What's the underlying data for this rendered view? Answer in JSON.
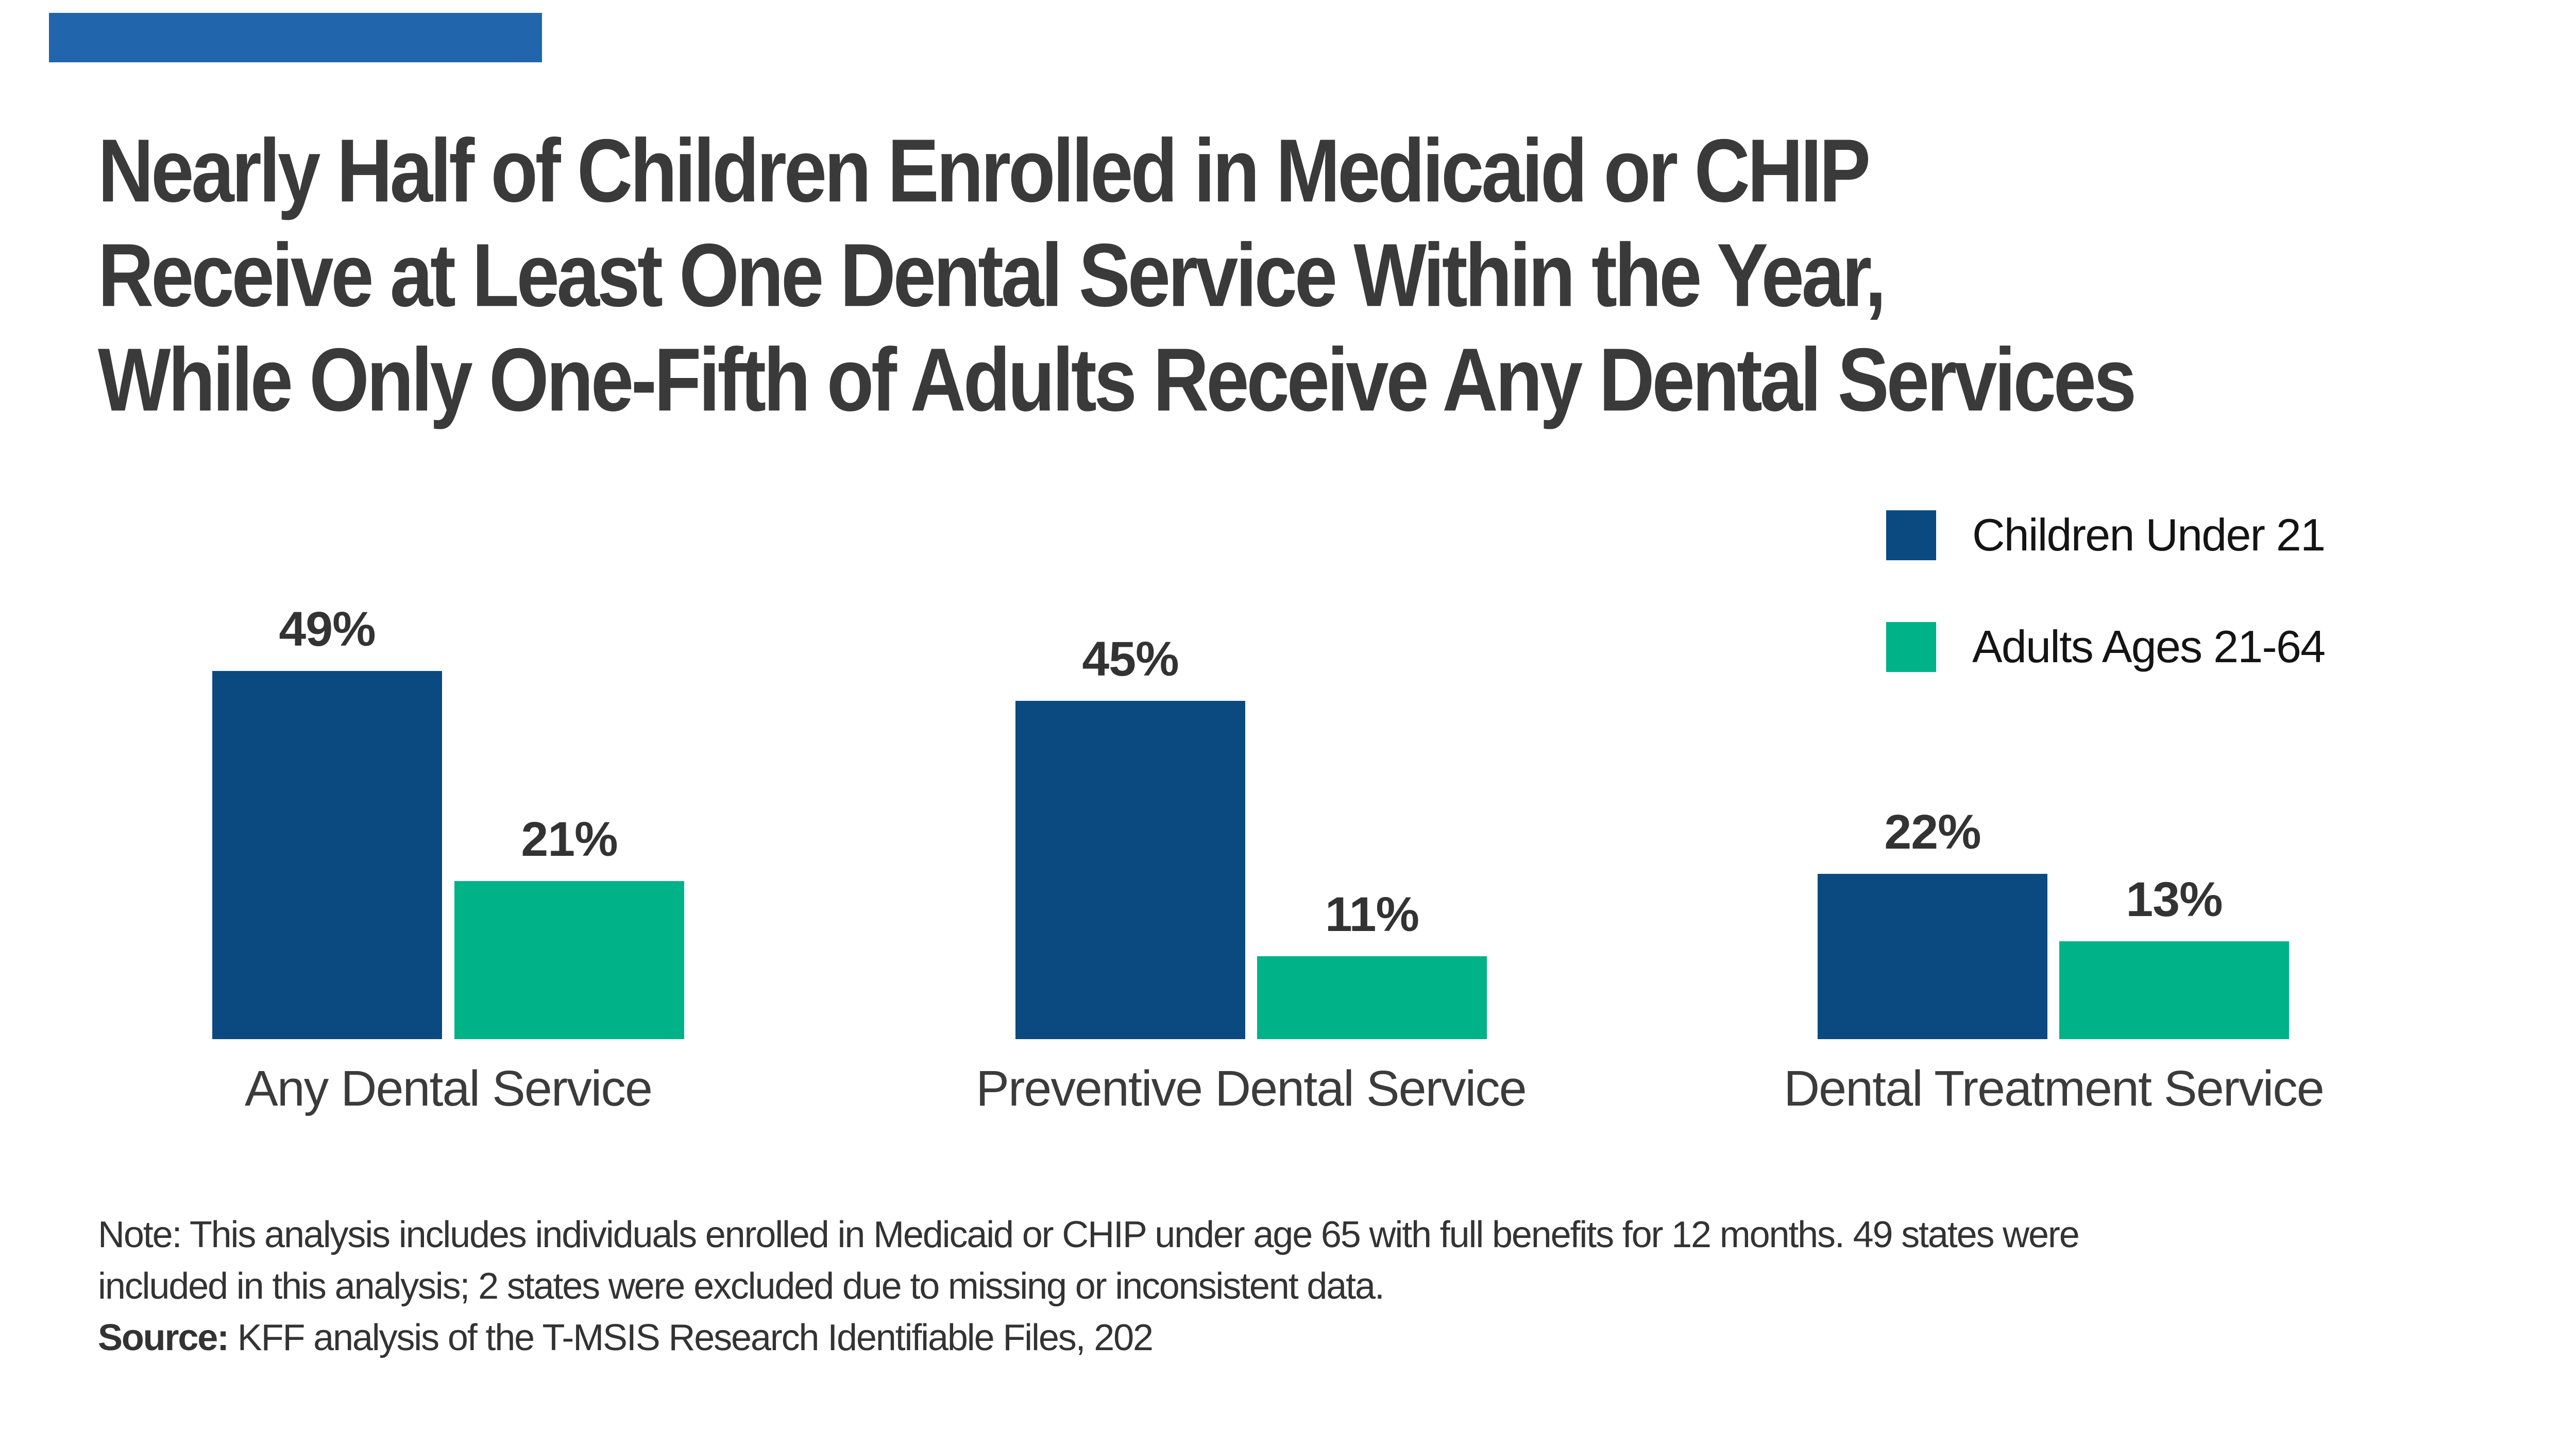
{
  "brand": {
    "corner_color": "#2166AC"
  },
  "title": {
    "line1": "Nearly Half of Children Enrolled in Medicaid or CHIP",
    "line2": "Receive at Least One Dental Service Within the Year,",
    "line3": "While Only One-Fifth of Adults Receive Any Dental Services",
    "color": "#3A3A3A"
  },
  "legend": {
    "items": [
      {
        "label": "Children Under 21",
        "color": "#0B4A80"
      },
      {
        "label": "Adults Ages 21-64",
        "color": "#00B288"
      }
    ]
  },
  "chart_data": {
    "type": "bar",
    "title": "Share receiving dental services among Medicaid/CHIP enrollees",
    "categories": [
      "Any Dental Service",
      "Preventive Dental Service",
      "Dental Treatment Service"
    ],
    "series": [
      {
        "name": "Children Under 21",
        "color": "#0B4A80",
        "values": [
          49,
          45,
          22
        ],
        "labels": [
          "49%",
          "45%",
          "22%"
        ]
      },
      {
        "name": "Adults Ages 21-64",
        "color": "#00B288",
        "values": [
          21,
          11,
          13
        ],
        "labels": [
          "21%",
          "11%",
          "13%"
        ]
      }
    ],
    "unit": "%",
    "ylim": [
      0,
      55
    ],
    "grid": false,
    "axis_lines": false,
    "legend_position": "top-right",
    "value_label_color": "#333333"
  },
  "notes": {
    "note_line1": "Note: This analysis includes individuals enrolled in Medicaid or CHIP under age 65 with full benefits for 12 months. 49 states were",
    "note_line2": "included in this analysis; 2 states were excluded due to missing or inconsistent data.",
    "source_label": "Source:",
    "source_text": " KFF analysis of the T-MSIS Research Identifiable Files, 202"
  }
}
